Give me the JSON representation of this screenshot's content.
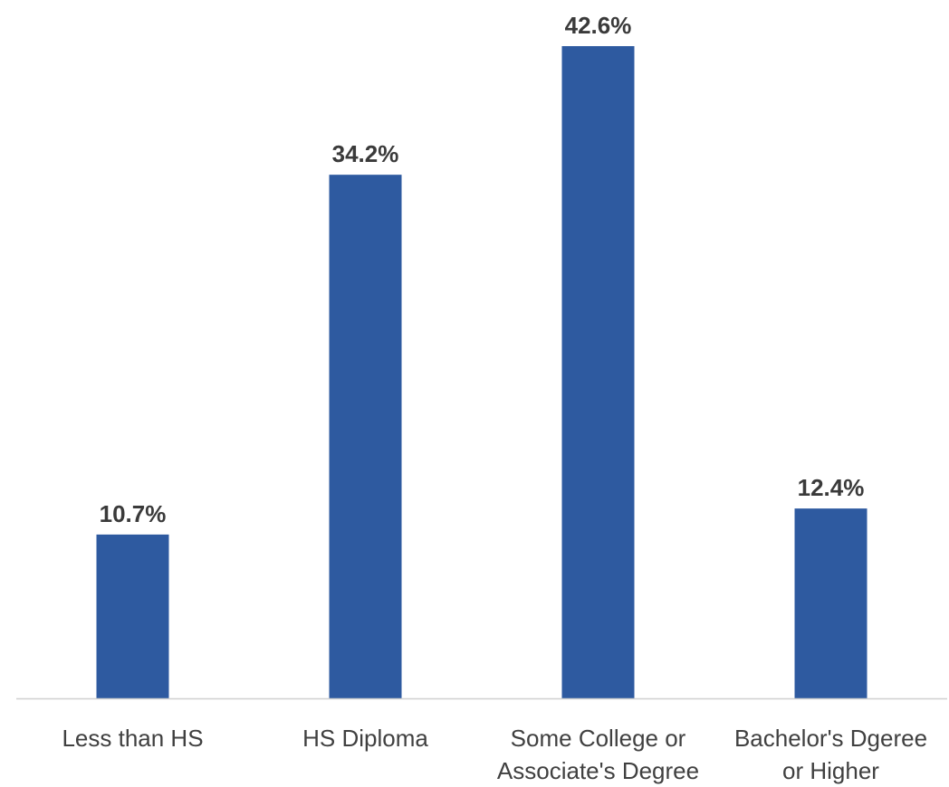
{
  "chart_data": {
    "type": "bar",
    "categories": [
      [
        "Less than HS"
      ],
      [
        "HS Diploma"
      ],
      [
        "Some College or",
        "Associate's Degree"
      ],
      [
        "Bachelor's Dgeree",
        "or Higher"
      ]
    ],
    "values": [
      10.7,
      34.2,
      42.6,
      12.4
    ],
    "data_labels": [
      "10.7%",
      "34.2%",
      "42.6%",
      "12.4%"
    ],
    "title": "",
    "xlabel": "",
    "ylabel": "",
    "ylim": [
      0,
      42.6
    ],
    "grid": false,
    "bar_color": "#2e5aa0",
    "axis_color": "#d0d0d0"
  }
}
